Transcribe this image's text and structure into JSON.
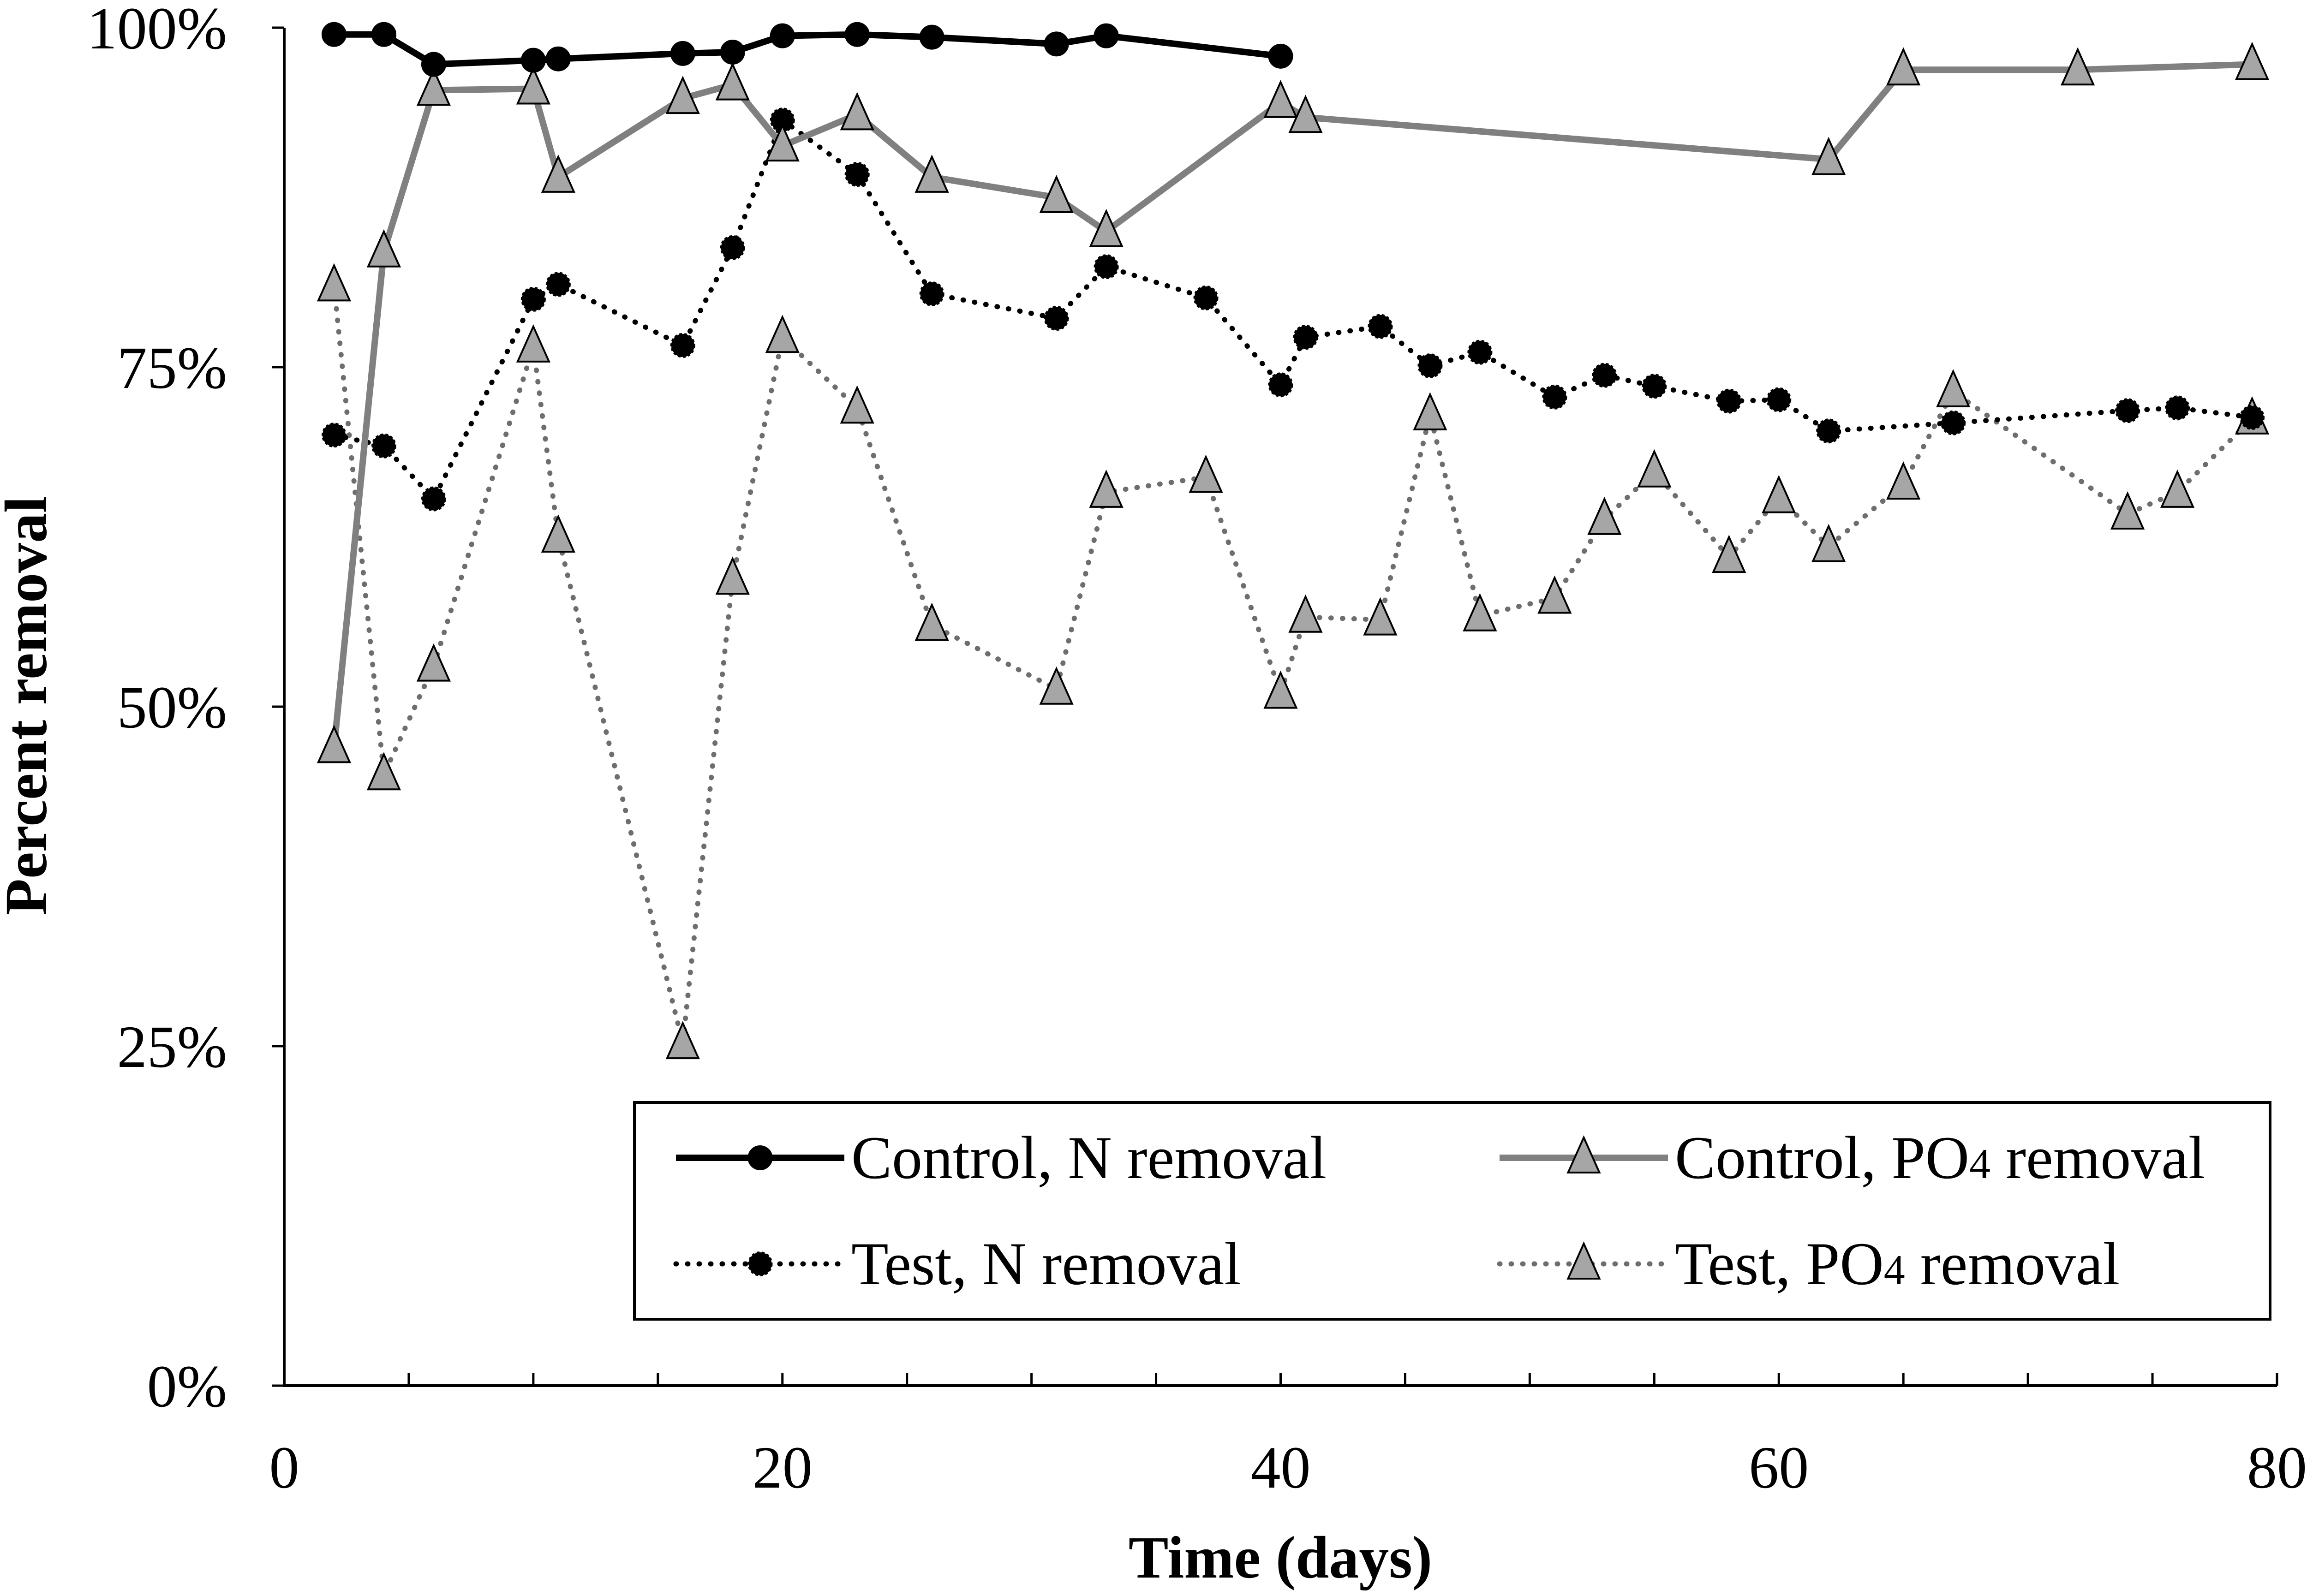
{
  "chart_data": {
    "type": "line",
    "title": "",
    "xlabel": "Time (days)",
    "ylabel": "Percent removal",
    "xlim": [
      0,
      80
    ],
    "ylim": [
      0,
      100
    ],
    "x_ticks": [
      0,
      20,
      40,
      60,
      80
    ],
    "x_tick_labels": [
      "0",
      "20",
      "40",
      "60",
      "80"
    ],
    "y_ticks": [
      0,
      25,
      50,
      75,
      100
    ],
    "y_tick_labels": [
      "0%",
      "25%",
      "50%",
      "75%",
      "100%"
    ],
    "grid": false,
    "legend_position": "bottom-right",
    "series": [
      {
        "name": "Control, N removal",
        "legend_prefix": "Control, N removal",
        "legend_sub": "",
        "legend_suffix": "",
        "color": "#000000",
        "line": "solid",
        "marker": "circle",
        "marker_fill": "#000000",
        "x": [
          2,
          4,
          6,
          10,
          11,
          16,
          18,
          20,
          23,
          26,
          31,
          33,
          40
        ],
        "values": [
          99.5,
          99.5,
          97.3,
          97.6,
          97.7,
          98.1,
          98.2,
          99.4,
          99.5,
          99.3,
          98.8,
          99.4,
          97.9
        ]
      },
      {
        "name": "Control, PO4 removal",
        "legend_prefix": "Control, PO",
        "legend_sub": "4",
        "legend_suffix": " removal",
        "color": "#808080",
        "line": "solid",
        "marker": "triangle",
        "marker_fill": "#a6a6a6",
        "x": [
          2,
          4,
          6,
          10,
          11,
          16,
          18,
          20,
          23,
          26,
          31,
          33,
          40,
          41,
          62,
          65,
          72,
          79
        ],
        "values": [
          47,
          83.5,
          95.4,
          95.5,
          89,
          94.8,
          95.8,
          91.3,
          93.6,
          89,
          87.5,
          85,
          94.5,
          93.4,
          90.3,
          96.9,
          96.9,
          97.3
        ]
      },
      {
        "name": "Test, N removal",
        "legend_prefix": "Test, N removal",
        "legend_sub": "",
        "legend_suffix": "",
        "color": "#000000",
        "line": "dotted",
        "marker": "circle",
        "marker_fill": "#000000",
        "x": [
          2,
          4,
          6,
          10,
          11,
          16,
          18,
          20,
          23,
          26,
          31,
          33,
          37,
          40,
          41,
          44,
          46,
          48,
          51,
          53,
          55,
          58,
          60,
          62,
          67,
          74,
          76,
          79
        ],
        "values": [
          70,
          69.2,
          65.3,
          80,
          81.1,
          76.6,
          83.8,
          93.2,
          89.2,
          80.4,
          78.6,
          82.4,
          80.1,
          73.7,
          77.2,
          78,
          75.1,
          76.1,
          72.8,
          74.4,
          73.6,
          72.5,
          72.6,
          70.3,
          70.9,
          71.8,
          72,
          71.3
        ]
      },
      {
        "name": "Test, PO4 removal",
        "legend_prefix": "Test, PO",
        "legend_sub": "4",
        "legend_suffix": " removal",
        "color": "#6e6e6e",
        "line": "dotted",
        "marker": "triangle",
        "marker_fill": "#a6a6a6",
        "x": [
          2,
          4,
          6,
          10,
          11,
          16,
          18,
          20,
          23,
          26,
          31,
          33,
          37,
          40,
          41,
          44,
          46,
          48,
          51,
          53,
          55,
          58,
          60,
          62,
          65,
          67,
          74,
          76,
          79
        ],
        "values": [
          81,
          45,
          53,
          76.5,
          62.5,
          25.2,
          59.4,
          77.2,
          72,
          56,
          51.3,
          65.8,
          66.9,
          51,
          56.6,
          56.4,
          71.5,
          56.7,
          58,
          63.8,
          67.3,
          61,
          65.4,
          61.8,
          66.4,
          73.2,
          64.2,
          65.8,
          71.2
        ]
      }
    ]
  }
}
